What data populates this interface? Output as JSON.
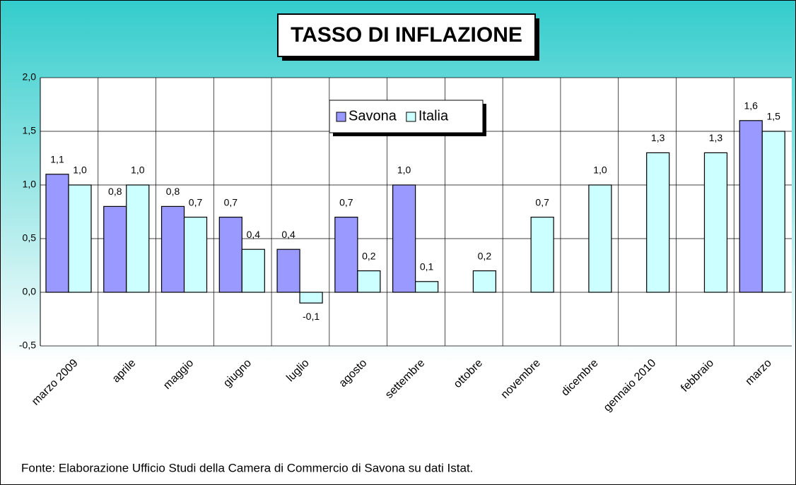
{
  "chart_data": {
    "type": "bar",
    "title": "TASSO DI INFLAZIONE",
    "note": "Fonte: Elaborazione Ufficio Studi della Camera di Commercio di Savona su dati Istat.",
    "categories": [
      "marzo 2009",
      "aprile",
      "maggio",
      "giugno",
      "luglio",
      "agosto",
      "settembre",
      "ottobre",
      "novembre",
      "dicembre",
      "gennaio 2010",
      "febbraio",
      "marzo"
    ],
    "series": [
      {
        "name": "Savona",
        "color": "#9999ff",
        "values": [
          1.1,
          0.8,
          0.8,
          0.7,
          0.4,
          0.7,
          1.0,
          null,
          null,
          null,
          null,
          null,
          1.6
        ],
        "value_labels": [
          "1,1",
          "0,8",
          "0,8",
          "0,7",
          "0,4",
          "0,7",
          "1,0",
          null,
          null,
          null,
          null,
          null,
          "1,6"
        ]
      },
      {
        "name": "Italia",
        "color": "#ccffff",
        "values": [
          1.0,
          1.0,
          0.7,
          0.4,
          -0.1,
          0.2,
          0.1,
          0.2,
          0.7,
          1.0,
          1.3,
          1.3,
          1.5
        ],
        "value_labels": [
          "1,0",
          "1,0",
          "0,7",
          "0,4",
          "-0,1",
          "0,2",
          "0,1",
          "0,2",
          "0,7",
          "1,0",
          "1,3",
          "1,3",
          "1,5"
        ]
      }
    ],
    "ylim": [
      -0.5,
      2.0
    ],
    "yticks": [
      {
        "value": -0.5,
        "label": "-0,5"
      },
      {
        "value": 0,
        "label": "0,0"
      },
      {
        "value": 0.5,
        "label": "0,5"
      },
      {
        "value": 1,
        "label": "1,0"
      },
      {
        "value": 1.5,
        "label": "1,5"
      },
      {
        "value": 2,
        "label": "2,0"
      }
    ],
    "grid": true,
    "legend_position": "top"
  }
}
